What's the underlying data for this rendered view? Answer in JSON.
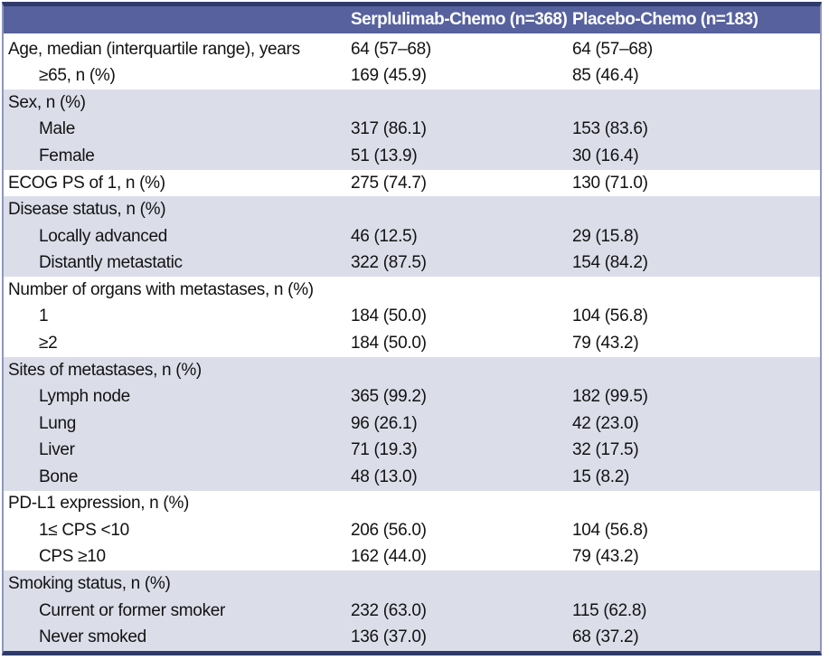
{
  "table": {
    "title": "Baseline characteristics table",
    "header": {
      "col_label": "",
      "col_serplulimab": "Serplulimab-Chemo (n=368)",
      "col_placebo": "Placebo-Chemo (n=183)"
    },
    "colors": {
      "header_bg": "#56619E",
      "header_text": "#FFFFFF",
      "shaded_row_bg": "#DBDEE9",
      "outer_border": "#2E3A69",
      "side_border": "#8F97C0",
      "body_text": "#121212"
    },
    "rows": [
      {
        "label": "Age, median (interquartile range), years",
        "indent": false,
        "shaded": false,
        "v1": "64 (57–68)",
        "v2": "64 (57–68)"
      },
      {
        "label": "≥65, n (%)",
        "indent": true,
        "shaded": false,
        "v1": "169 (45.9)",
        "v2": "85 (46.4)"
      },
      {
        "label": "Sex, n (%)",
        "indent": false,
        "shaded": true,
        "v1": "",
        "v2": ""
      },
      {
        "label": "Male",
        "indent": true,
        "shaded": true,
        "v1": "317 (86.1)",
        "v2": "153 (83.6)"
      },
      {
        "label": "Female",
        "indent": true,
        "shaded": true,
        "v1": "51 (13.9)",
        "v2": "30 (16.4)"
      },
      {
        "label": "ECOG PS of 1, n (%)",
        "indent": false,
        "shaded": false,
        "v1": "275 (74.7)",
        "v2": "130 (71.0)"
      },
      {
        "label": "Disease status, n (%)",
        "indent": false,
        "shaded": true,
        "v1": "",
        "v2": ""
      },
      {
        "label": "Locally advanced",
        "indent": true,
        "shaded": true,
        "v1": "46 (12.5)",
        "v2": "29 (15.8)"
      },
      {
        "label": "Distantly metastatic",
        "indent": true,
        "shaded": true,
        "v1": "322 (87.5)",
        "v2": "154 (84.2)"
      },
      {
        "label": "Number of organs with metastases, n (%)",
        "indent": false,
        "shaded": false,
        "v1": "",
        "v2": ""
      },
      {
        "label": "1",
        "indent": true,
        "shaded": false,
        "v1": "184 (50.0)",
        "v2": "104 (56.8)"
      },
      {
        "label": "≥2",
        "indent": true,
        "shaded": false,
        "v1": "184 (50.0)",
        "v2": "79 (43.2)"
      },
      {
        "label": "Sites of metastases, n (%)",
        "indent": false,
        "shaded": true,
        "v1": "",
        "v2": ""
      },
      {
        "label": "Lymph node",
        "indent": true,
        "shaded": true,
        "v1": "365 (99.2)",
        "v2": "182 (99.5)"
      },
      {
        "label": "Lung",
        "indent": true,
        "shaded": true,
        "v1": "96 (26.1)",
        "v2": "42 (23.0)"
      },
      {
        "label": "Liver",
        "indent": true,
        "shaded": true,
        "v1": "71 (19.3)",
        "v2": "32 (17.5)"
      },
      {
        "label": "Bone",
        "indent": true,
        "shaded": true,
        "v1": "48 (13.0)",
        "v2": "15 (8.2)"
      },
      {
        "label": "PD-L1 expression, n (%)",
        "indent": false,
        "shaded": false,
        "v1": "",
        "v2": ""
      },
      {
        "label": "1≤ CPS <10",
        "indent": true,
        "shaded": false,
        "v1": "206 (56.0)",
        "v2": "104 (56.8)"
      },
      {
        "label": "CPS ≥10",
        "indent": true,
        "shaded": false,
        "v1": "162 (44.0)",
        "v2": "79 (43.2)"
      },
      {
        "label": "Smoking status, n (%)",
        "indent": false,
        "shaded": true,
        "v1": "",
        "v2": ""
      },
      {
        "label": "Current or former smoker",
        "indent": true,
        "shaded": true,
        "v1": "232 (63.0)",
        "v2": "115 (62.8)"
      },
      {
        "label": "Never smoked",
        "indent": true,
        "shaded": true,
        "v1": "136 (37.0)",
        "v2": "68 (37.2)"
      }
    ]
  }
}
